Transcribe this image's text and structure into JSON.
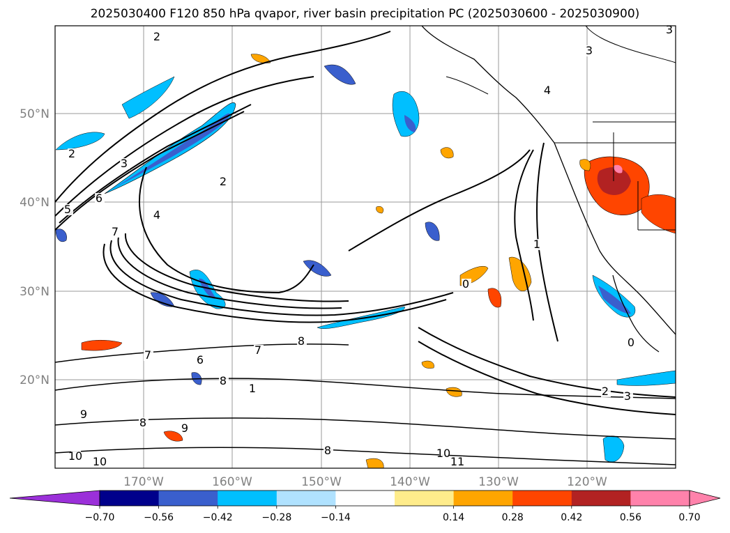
{
  "title": "2025030400 F120 850 hPa qvapor, river basin precipitation PC (2025030600 - 2025030900)",
  "map": {
    "lon_labels": [
      "170°W",
      "160°W",
      "150°W",
      "140°W",
      "130°W",
      "120°W"
    ],
    "lat_labels": [
      "50°N",
      "40°N",
      "30°N",
      "20°N"
    ],
    "contour_labels": [
      "2",
      "2",
      "2",
      "3",
      "3",
      "3",
      "4",
      "4",
      "5",
      "6",
      "6",
      "7",
      "7",
      "7",
      "8",
      "8",
      "8",
      "8",
      "9",
      "9",
      "10",
      "10",
      "10",
      "11",
      "1",
      "1",
      "0",
      "0",
      "2",
      "3"
    ]
  },
  "colorbar": {
    "ticks": [
      "−0.70",
      "−0.56",
      "−0.42",
      "−0.28",
      "−0.14",
      "0.14",
      "0.28",
      "0.42",
      "0.56",
      "0.70"
    ],
    "colors": [
      "#9b30d9",
      "#00008b",
      "#3a5fcd",
      "#00bfff",
      "#b0e2ff",
      "#ffffff",
      "#ffec8b",
      "#ffa500",
      "#ff4500",
      "#b22222",
      "#ff82ab",
      "#ff82ab"
    ]
  }
}
